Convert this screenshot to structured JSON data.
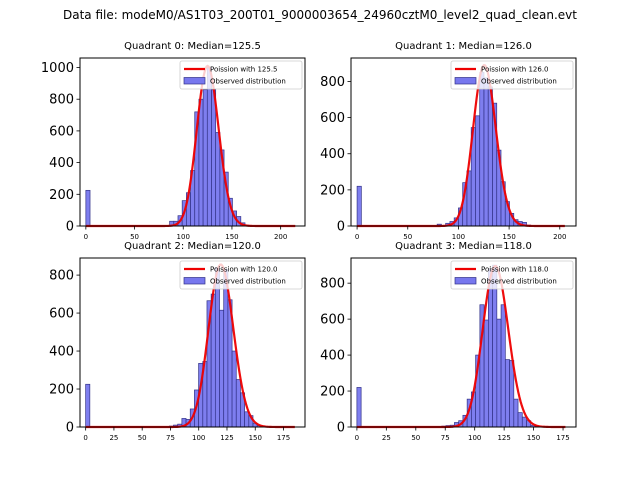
{
  "suptitle": "Data file: modeM0/AS1T03_200T01_9000003654_24960cztM0_level2_quad_clean.evt",
  "colors": {
    "bar_fill": "#7777ee",
    "bar_edge": "#333388",
    "poisson_line": "#ee0000"
  },
  "chart_data": [
    {
      "type": "bar",
      "title": "Quadrant 0: Median=125.5",
      "xlim": [
        -6,
        225
      ],
      "ylim": [
        0,
        1060
      ],
      "xticks": [
        0,
        50,
        100,
        150,
        200
      ],
      "yticks": [
        0,
        200,
        400,
        600,
        800,
        1000
      ],
      "bin_width": 4.3,
      "bins": [
        {
          "x": 0,
          "count": 225
        },
        {
          "x": 86,
          "count": 30
        },
        {
          "x": 90.3,
          "count": 30
        },
        {
          "x": 94.6,
          "count": 65
        },
        {
          "x": 98.9,
          "count": 160
        },
        {
          "x": 103.2,
          "count": 210
        },
        {
          "x": 107.5,
          "count": 350
        },
        {
          "x": 111.8,
          "count": 720
        },
        {
          "x": 116.1,
          "count": 800
        },
        {
          "x": 120.4,
          "count": 860
        },
        {
          "x": 124.7,
          "count": 1000
        },
        {
          "x": 129,
          "count": 860
        },
        {
          "x": 133.3,
          "count": 590
        },
        {
          "x": 137.6,
          "count": 480
        },
        {
          "x": 141.9,
          "count": 340
        },
        {
          "x": 146.2,
          "count": 175
        },
        {
          "x": 150.5,
          "count": 95
        },
        {
          "x": 154.8,
          "count": 60
        },
        {
          "x": 159.1,
          "count": 20
        },
        {
          "x": 163.4,
          "count": 5
        }
      ],
      "poisson_mean": 125.5,
      "poisson_peak": 1010,
      "poisson_xrange": [
        0,
        215
      ],
      "legend": [
        "Poission with 125.5",
        "Observed distribution"
      ],
      "legend_loc": "upper right"
    },
    {
      "type": "bar",
      "title": "Quadrant 1: Median=126.0",
      "xlim": [
        -6,
        216
      ],
      "ylim": [
        0,
        930
      ],
      "xticks": [
        0,
        50,
        100,
        150,
        200
      ],
      "yticks": [
        0,
        200,
        400,
        600,
        800
      ],
      "bin_width": 4.2,
      "bins": [
        {
          "x": 0,
          "count": 220
        },
        {
          "x": 79,
          "count": 10
        },
        {
          "x": 87.4,
          "count": 15
        },
        {
          "x": 91.6,
          "count": 25
        },
        {
          "x": 95.8,
          "count": 45
        },
        {
          "x": 100,
          "count": 100
        },
        {
          "x": 104.2,
          "count": 240
        },
        {
          "x": 108.4,
          "count": 305
        },
        {
          "x": 112.6,
          "count": 545
        },
        {
          "x": 116.8,
          "count": 610
        },
        {
          "x": 121,
          "count": 850
        },
        {
          "x": 125.2,
          "count": 820
        },
        {
          "x": 129.4,
          "count": 770
        },
        {
          "x": 133.6,
          "count": 680
        },
        {
          "x": 137.8,
          "count": 420
        },
        {
          "x": 142,
          "count": 245
        },
        {
          "x": 146.2,
          "count": 135
        },
        {
          "x": 150.4,
          "count": 70
        },
        {
          "x": 154.6,
          "count": 35
        },
        {
          "x": 158.8,
          "count": 25
        },
        {
          "x": 163,
          "count": 20
        },
        {
          "x": 167.2,
          "count": 5
        }
      ],
      "poisson_mean": 126.0,
      "poisson_peak": 890,
      "poisson_xrange": [
        0,
        205
      ],
      "legend": [
        "Poission with 126.0",
        "Observed distribution"
      ],
      "legend_loc": "upper right"
    },
    {
      "type": "bar",
      "title": "Quadrant 2: Median=120.0",
      "xlim": [
        -5,
        194
      ],
      "ylim": [
        0,
        890
      ],
      "xticks": [
        0,
        25,
        50,
        75,
        100,
        125,
        150,
        175
      ],
      "yticks": [
        0,
        200,
        400,
        600,
        800
      ],
      "bin_width": 3.7,
      "bins": [
        {
          "x": 0,
          "count": 225
        },
        {
          "x": 74,
          "count": 5
        },
        {
          "x": 77.7,
          "count": 10
        },
        {
          "x": 81.4,
          "count": 15
        },
        {
          "x": 85.1,
          "count": 45
        },
        {
          "x": 88.8,
          "count": 40
        },
        {
          "x": 92.5,
          "count": 95
        },
        {
          "x": 96.2,
          "count": 195
        },
        {
          "x": 99.9,
          "count": 335
        },
        {
          "x": 103.6,
          "count": 345
        },
        {
          "x": 107.3,
          "count": 665
        },
        {
          "x": 111,
          "count": 700
        },
        {
          "x": 114.7,
          "count": 840
        },
        {
          "x": 118.4,
          "count": 615
        },
        {
          "x": 122.1,
          "count": 830
        },
        {
          "x": 125.8,
          "count": 670
        },
        {
          "x": 129.5,
          "count": 400
        },
        {
          "x": 133.2,
          "count": 250
        },
        {
          "x": 136.9,
          "count": 180
        },
        {
          "x": 140.6,
          "count": 80
        },
        {
          "x": 144.3,
          "count": 60
        },
        {
          "x": 148,
          "count": 20
        },
        {
          "x": 151.7,
          "count": 8
        },
        {
          "x": 155.4,
          "count": 5
        }
      ],
      "poisson_mean": 120.0,
      "poisson_peak": 855,
      "poisson_xrange": [
        0,
        185
      ],
      "legend": [
        "Poission with 120.0",
        "Observed distribution"
      ],
      "legend_loc": "upper right"
    },
    {
      "type": "bar",
      "title": "Quadrant 3: Median=118.0",
      "xlim": [
        -5,
        186
      ],
      "ylim": [
        0,
        940
      ],
      "xticks": [
        0,
        25,
        50,
        75,
        100,
        125,
        150,
        175
      ],
      "yticks": [
        0,
        200,
        400,
        600,
        800
      ],
      "bin_width": 3.6,
      "bins": [
        {
          "x": 0,
          "count": 220
        },
        {
          "x": 72,
          "count": 5
        },
        {
          "x": 75.6,
          "count": 8
        },
        {
          "x": 79.2,
          "count": 10
        },
        {
          "x": 82.8,
          "count": 25
        },
        {
          "x": 86.4,
          "count": 35
        },
        {
          "x": 90,
          "count": 65
        },
        {
          "x": 93.6,
          "count": 155
        },
        {
          "x": 97.2,
          "count": 195
        },
        {
          "x": 100.8,
          "count": 400
        },
        {
          "x": 104.4,
          "count": 680
        },
        {
          "x": 108,
          "count": 595
        },
        {
          "x": 111.6,
          "count": 880
        },
        {
          "x": 115.2,
          "count": 900
        },
        {
          "x": 118.8,
          "count": 600
        },
        {
          "x": 122.4,
          "count": 680
        },
        {
          "x": 126,
          "count": 375
        },
        {
          "x": 129.6,
          "count": 370
        },
        {
          "x": 133.2,
          "count": 155
        },
        {
          "x": 136.8,
          "count": 80
        },
        {
          "x": 140.4,
          "count": 55
        },
        {
          "x": 144,
          "count": 35
        },
        {
          "x": 147.6,
          "count": 10
        },
        {
          "x": 151.2,
          "count": 5
        }
      ],
      "poisson_mean": 118.0,
      "poisson_peak": 895,
      "poisson_xrange": [
        0,
        177
      ],
      "legend": [
        "Poission with 118.0",
        "Observed distribution"
      ],
      "legend_loc": "upper right"
    }
  ]
}
